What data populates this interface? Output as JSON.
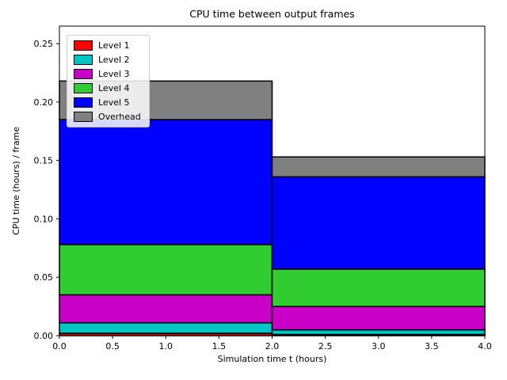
{
  "chart_data": {
    "type": "bar",
    "stacked": true,
    "title": "CPU time between output frames",
    "xlabel": "Simulation time t (hours)",
    "ylabel": "CPU time (hours) / frame",
    "xlim": [
      0.0,
      4.0
    ],
    "ylim": [
      0.0,
      0.265
    ],
    "grid": false,
    "legend_position": "upper left",
    "bar_edge_color": "#000000",
    "xticks": [
      0.0,
      0.5,
      1.0,
      1.5,
      2.0,
      2.5,
      3.0,
      3.5,
      4.0
    ],
    "xtick_labels": [
      "0.0",
      "0.5",
      "1.0",
      "1.5",
      "2.0",
      "2.5",
      "3.0",
      "3.5",
      "4.0"
    ],
    "yticks": [
      0.0,
      0.05,
      0.1,
      0.15,
      0.2,
      0.25
    ],
    "ytick_labels": [
      "0.00",
      "0.05",
      "0.10",
      "0.15",
      "0.20",
      "0.25"
    ],
    "bars": [
      {
        "x_start": 0.0,
        "x_end": 2.0
      },
      {
        "x_start": 2.0,
        "x_end": 4.0
      }
    ],
    "series": [
      {
        "name": "Level 1",
        "color": "#ff0000",
        "values": [
          0.002,
          0.001
        ]
      },
      {
        "name": "Level 2",
        "color": "#00c5c5",
        "values": [
          0.009,
          0.004
        ]
      },
      {
        "name": "Level 3",
        "color": "#c800c8",
        "values": [
          0.024,
          0.02
        ]
      },
      {
        "name": "Level 4",
        "color": "#32cd32",
        "values": [
          0.043,
          0.032
        ]
      },
      {
        "name": "Level 5",
        "color": "#0000ff",
        "values": [
          0.107,
          0.079
        ]
      },
      {
        "name": "Overhead",
        "color": "#808080",
        "values": [
          0.033,
          0.017
        ]
      }
    ],
    "stack_totals": [
      0.218,
      0.153
    ]
  }
}
